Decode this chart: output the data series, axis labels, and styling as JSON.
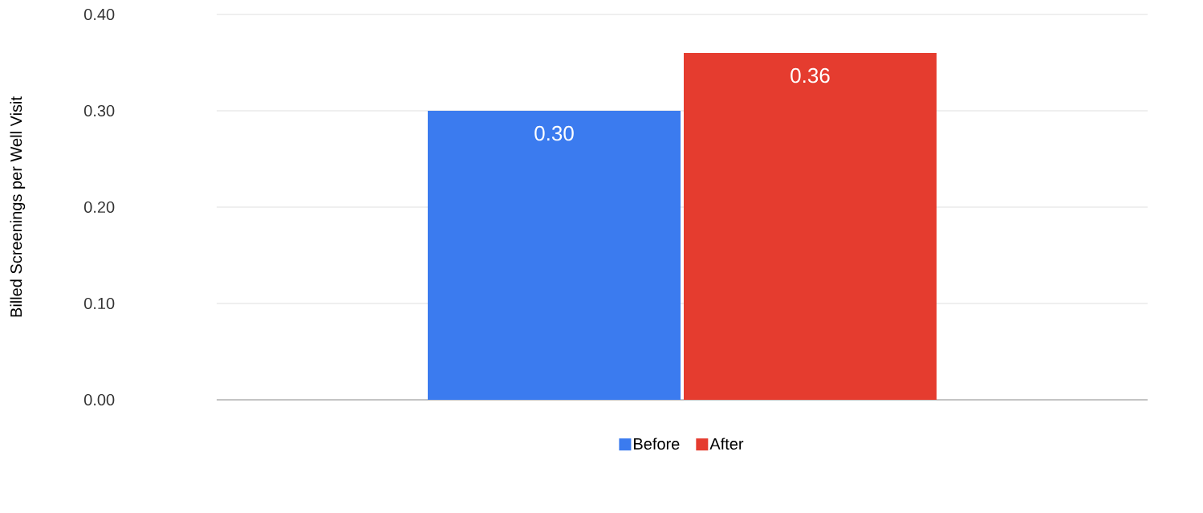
{
  "chart_data": {
    "type": "bar",
    "ylabel": "Billed Screenings per Well Visit",
    "categories": [
      null
    ],
    "series": [
      {
        "name": "Before",
        "color": "#3b7bef",
        "values": [
          0.3
        ],
        "value_labels": [
          "0.30"
        ]
      },
      {
        "name": "After",
        "color": "#e53c2f",
        "values": [
          0.36
        ],
        "value_labels": [
          "0.36"
        ]
      }
    ],
    "ylim": [
      0,
      0.4
    ],
    "yticks": [
      {
        "value": 0,
        "label": "0.00"
      },
      {
        "value": 0.1,
        "label": "0.10"
      },
      {
        "value": 0.2,
        "label": "0.20"
      },
      {
        "value": 0.3,
        "label": "0.30"
      },
      {
        "value": 0.4,
        "label": "0.40"
      }
    ],
    "grid": "y",
    "legend": "bottom"
  }
}
